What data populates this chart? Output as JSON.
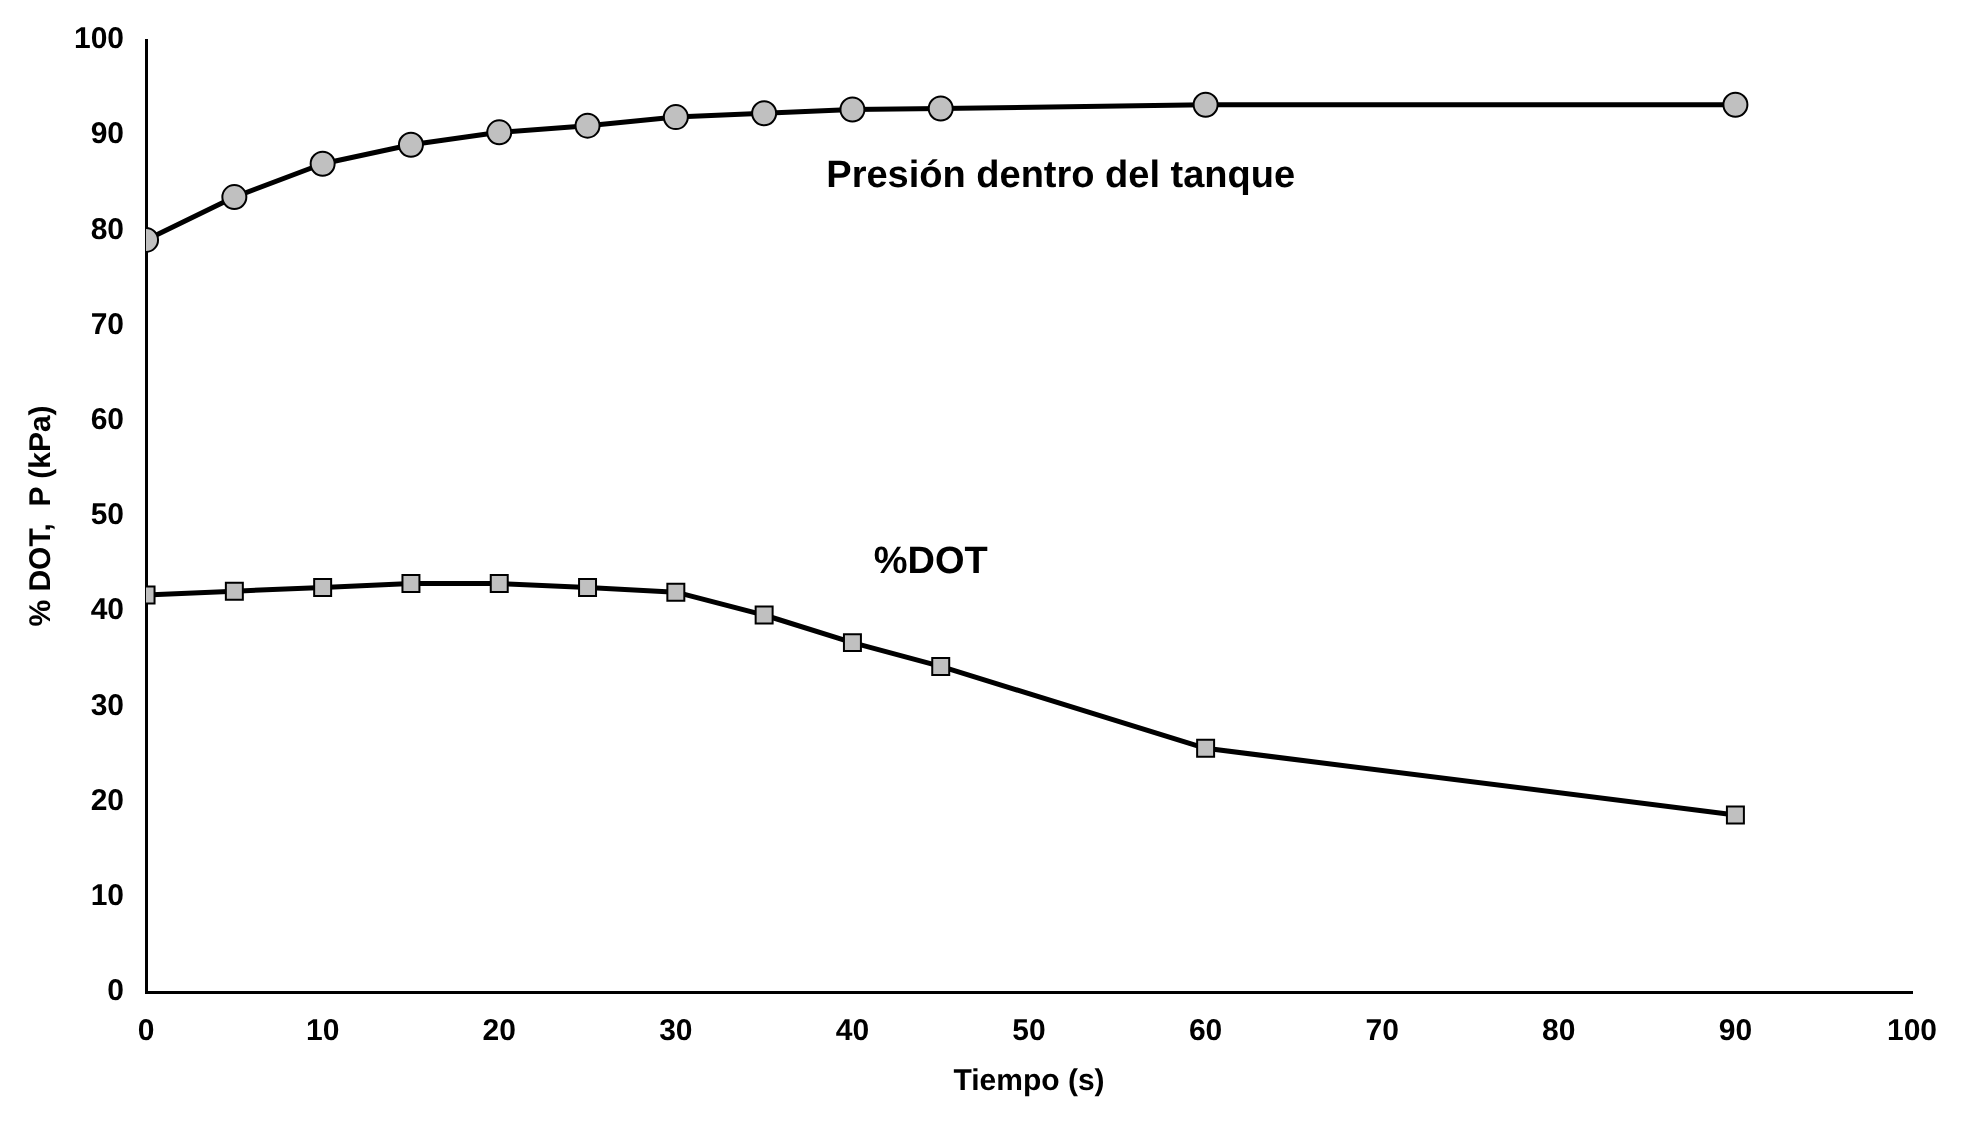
{
  "chart_data": {
    "type": "line",
    "xlabel": "Tiempo (s)",
    "ylabel": "% DOT,  P (kPa)",
    "xlim": [
      0,
      100
    ],
    "xticks": [
      0,
      10,
      20,
      30,
      40,
      50,
      60,
      70,
      80,
      90,
      100
    ],
    "ylim": [
      0,
      100
    ],
    "yticks": [
      0,
      10,
      20,
      30,
      40,
      50,
      60,
      70,
      80,
      90,
      100
    ],
    "grid": false,
    "legend": false,
    "series": [
      {
        "name": "Presión dentro del tanque",
        "color": "#000000",
        "marker": "circle",
        "x": [
          0,
          5,
          10,
          15,
          20,
          25,
          30,
          35,
          40,
          45,
          60,
          90
        ],
        "values": [
          79,
          83.5,
          87,
          89,
          90.3,
          91,
          91.9,
          92.3,
          92.7,
          92.8,
          93.2,
          93.2
        ]
      },
      {
        "name": "%DOT",
        "color": "#000000",
        "marker": "square",
        "x": [
          0,
          5,
          10,
          15,
          20,
          25,
          30,
          35,
          40,
          45,
          60,
          90
        ],
        "values": [
          41.7,
          42.1,
          42.5,
          42.9,
          42.9,
          42.5,
          42,
          39.6,
          36.7,
          34.2,
          25.6,
          18.6
        ]
      }
    ]
  }
}
